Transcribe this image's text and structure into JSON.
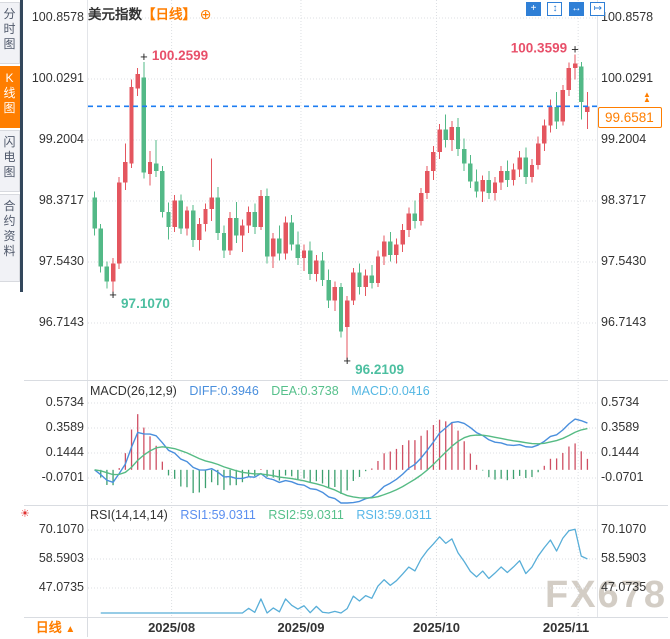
{
  "sidebar": {
    "tabs": [
      {
        "label": "分时图",
        "active": false
      },
      {
        "label": "K线图",
        "active": true
      },
      {
        "label": "闪电图",
        "active": false
      },
      {
        "label": "合约资料",
        "active": false
      }
    ]
  },
  "header": {
    "title": "美元指数",
    "period_tag": "【日线】",
    "add_icon_glyph": "⊕"
  },
  "toolbar": {
    "icons": [
      {
        "name": "pan-tool-icon",
        "glyph": "+",
        "active": true
      },
      {
        "name": "fit-vertical-icon",
        "glyph": "↕",
        "active": false
      },
      {
        "name": "fit-horizontal-icon",
        "glyph": "↔",
        "active": true
      },
      {
        "name": "scroll-to-latest-icon",
        "glyph": "↦",
        "active": false
      }
    ]
  },
  "chart_data": {
    "type": "candlestick",
    "title": "美元指数",
    "period": "日线",
    "y_axis": {
      "labels": [
        "100.8578",
        "100.0291",
        "99.2004",
        "98.3717",
        "97.5430",
        "96.7143"
      ]
    },
    "x_axis": {
      "labels": [
        "2025/08",
        "2025/09",
        "2025/10",
        "2025/11"
      ],
      "month_start_indices": [
        13,
        34,
        56,
        79
      ]
    },
    "fields": [
      "date",
      "open",
      "high",
      "low",
      "close"
    ],
    "candles": [
      [
        "07/15",
        98.42,
        98.5,
        97.9,
        98.0
      ],
      [
        "07/16",
        98.0,
        98.06,
        97.4,
        97.48
      ],
      [
        "07/17",
        97.48,
        97.55,
        97.18,
        97.28
      ],
      [
        "07/18",
        97.28,
        97.6,
        97.107,
        97.52
      ],
      [
        "07/21",
        97.52,
        98.7,
        97.45,
        98.62
      ],
      [
        "07/22",
        98.62,
        99.15,
        98.52,
        98.9
      ],
      [
        "07/23",
        98.88,
        100.02,
        98.82,
        99.92
      ],
      [
        "07/24",
        99.9,
        100.18,
        99.8,
        100.1
      ],
      [
        "07/25",
        100.05,
        100.2599,
        98.68,
        98.76
      ],
      [
        "07/28",
        98.74,
        99.05,
        98.58,
        98.9
      ],
      [
        "07/29",
        98.88,
        99.2,
        98.7,
        98.78
      ],
      [
        "07/30",
        98.78,
        98.85,
        98.15,
        98.22
      ],
      [
        "07/31",
        98.22,
        98.35,
        97.85,
        98.02
      ],
      [
        "08/01",
        98.02,
        98.45,
        97.95,
        98.38
      ],
      [
        "08/04",
        98.38,
        98.46,
        97.92,
        98.0
      ],
      [
        "08/05",
        98.0,
        98.3,
        97.9,
        98.24
      ],
      [
        "08/06",
        98.24,
        98.32,
        97.75,
        97.84
      ],
      [
        "08/07",
        97.84,
        98.14,
        97.7,
        98.06
      ],
      [
        "08/08",
        98.06,
        98.34,
        97.96,
        98.26
      ],
      [
        "08/11",
        98.26,
        98.95,
        98.1,
        98.42
      ],
      [
        "08/12",
        98.42,
        98.56,
        97.84,
        97.94
      ],
      [
        "08/13",
        97.94,
        98.04,
        97.6,
        97.7
      ],
      [
        "08/14",
        97.7,
        98.22,
        97.64,
        98.14
      ],
      [
        "08/15",
        98.14,
        98.36,
        97.8,
        97.9
      ],
      [
        "08/18",
        97.9,
        98.12,
        97.68,
        98.04
      ],
      [
        "08/19",
        98.04,
        98.3,
        97.94,
        98.22
      ],
      [
        "08/20",
        98.22,
        98.34,
        97.92,
        98.02
      ],
      [
        "08/21",
        98.02,
        98.52,
        97.98,
        98.44
      ],
      [
        "08/22",
        98.44,
        98.54,
        97.52,
        97.62
      ],
      [
        "08/25",
        97.62,
        97.94,
        97.46,
        97.86
      ],
      [
        "08/26",
        97.86,
        98.04,
        97.56,
        97.66
      ],
      [
        "08/27",
        97.66,
        98.16,
        97.58,
        98.08
      ],
      [
        "08/28",
        98.08,
        98.18,
        97.7,
        97.78
      ],
      [
        "08/29",
        97.78,
        97.96,
        97.5,
        97.6
      ],
      [
        "09/01",
        97.6,
        97.78,
        97.42,
        97.7
      ],
      [
        "09/02",
        97.7,
        97.82,
        97.3,
        97.38
      ],
      [
        "09/03",
        97.38,
        97.64,
        97.28,
        97.56
      ],
      [
        "09/04",
        97.56,
        97.68,
        97.22,
        97.3
      ],
      [
        "09/05",
        97.3,
        97.44,
        96.92,
        97.02
      ],
      [
        "09/08",
        97.02,
        97.28,
        96.88,
        97.2
      ],
      [
        "09/09",
        97.2,
        97.26,
        96.52,
        96.6
      ],
      [
        "09/10",
        96.66,
        97.08,
        96.2109,
        97.02
      ],
      [
        "09/11",
        97.02,
        97.46,
        96.96,
        97.4
      ],
      [
        "09/12",
        97.4,
        97.52,
        97.1,
        97.2
      ],
      [
        "09/15",
        97.2,
        97.44,
        97.08,
        97.36
      ],
      [
        "09/16",
        97.36,
        97.5,
        97.18,
        97.26
      ],
      [
        "09/17",
        97.26,
        97.7,
        97.2,
        97.62
      ],
      [
        "09/18",
        97.62,
        97.9,
        97.5,
        97.82
      ],
      [
        "09/19",
        97.82,
        97.95,
        97.55,
        97.64
      ],
      [
        "09/22",
        97.64,
        97.86,
        97.52,
        97.78
      ],
      [
        "09/23",
        97.78,
        98.06,
        97.68,
        97.98
      ],
      [
        "09/24",
        97.98,
        98.28,
        97.88,
        98.2
      ],
      [
        "09/25",
        98.2,
        98.38,
        98.0,
        98.1
      ],
      [
        "09/26",
        98.1,
        98.55,
        98.04,
        98.48
      ],
      [
        "09/29",
        98.48,
        98.85,
        98.4,
        98.78
      ],
      [
        "09/30",
        98.78,
        99.12,
        98.66,
        99.04
      ],
      [
        "10/01",
        99.04,
        99.42,
        98.94,
        99.34
      ],
      [
        "10/02",
        99.34,
        99.55,
        99.1,
        99.2
      ],
      [
        "10/03",
        99.2,
        99.46,
        99.05,
        99.38
      ],
      [
        "10/06",
        99.38,
        99.5,
        98.98,
        99.08
      ],
      [
        "10/07",
        99.08,
        99.22,
        98.78,
        98.88
      ],
      [
        "10/08",
        98.88,
        99.0,
        98.55,
        98.64
      ],
      [
        "10/09",
        98.64,
        98.8,
        98.42,
        98.5
      ],
      [
        "10/10",
        98.5,
        98.72,
        98.36,
        98.66
      ],
      [
        "10/13",
        98.66,
        98.78,
        98.4,
        98.48
      ],
      [
        "10/14",
        98.48,
        98.7,
        98.38,
        98.62
      ],
      [
        "10/15",
        98.62,
        98.85,
        98.52,
        98.78
      ],
      [
        "10/16",
        98.78,
        98.92,
        98.56,
        98.66
      ],
      [
        "10/17",
        98.66,
        98.88,
        98.58,
        98.8
      ],
      [
        "10/20",
        98.8,
        99.05,
        98.7,
        98.96
      ],
      [
        "10/21",
        98.96,
        99.1,
        98.6,
        98.7
      ],
      [
        "10/22",
        98.7,
        98.94,
        98.62,
        98.86
      ],
      [
        "10/23",
        98.86,
        99.25,
        98.8,
        99.15
      ],
      [
        "10/24",
        99.15,
        99.48,
        99.05,
        99.4
      ],
      [
        "10/27",
        99.4,
        99.75,
        99.3,
        99.65
      ],
      [
        "10/28",
        99.65,
        99.85,
        99.35,
        99.45
      ],
      [
        "10/29",
        99.45,
        99.95,
        99.4,
        99.88
      ],
      [
        "10/30",
        99.88,
        100.25,
        99.8,
        100.18
      ],
      [
        "10/31",
        100.18,
        100.3599,
        100.02,
        100.24
      ],
      [
        "11/03",
        100.2,
        100.26,
        99.48,
        99.72
      ],
      [
        "11/04",
        99.58,
        99.85,
        99.35,
        99.6581
      ]
    ],
    "annotations": {
      "high_labels": [
        {
          "text": "100.2599",
          "index": 8,
          "side": "right"
        },
        {
          "text": "100.3599",
          "index": 78,
          "side": "left"
        }
      ],
      "low_labels": [
        {
          "text": "97.1070",
          "index": 3
        },
        {
          "text": "96.2109",
          "index": 41
        }
      ],
      "last_price": "99.6581"
    },
    "macd": {
      "title": "MACD(26,12,9)",
      "diff_label": "DIFF:0.3946",
      "dea_label": "DEA:0.3738",
      "macd_label": "MACD:0.0416",
      "params": [
        26,
        12,
        9
      ],
      "y_labels": [
        "0.5734",
        "0.3589",
        "0.1444",
        "-0.0701"
      ]
    },
    "rsi": {
      "title": "RSI(14,14,14)",
      "rsi1_label": "RSI1:59.0311",
      "rsi2_label": "RSI2:59.0311",
      "rsi3_label": "RSI3:59.0311",
      "params": [
        14,
        14,
        14
      ],
      "y_labels": [
        "70.1070",
        "58.5903",
        "47.0735"
      ]
    },
    "colors": {
      "up": "#e4565f",
      "down": "#53b987",
      "price_line": "#1d7df2",
      "accent_orange": "#ff7e00",
      "annotation_up": "#e8506a",
      "annotation_down": "#4cbfa0",
      "diff_line": "#4a8fdd",
      "dea_line": "#56bb84",
      "hist_up": "#cf4f63",
      "hist_down": "#3da06f",
      "rsi_line": "#58aed8",
      "grid": "#dcdfe3"
    }
  },
  "footer": {
    "period_button": "日线",
    "period_arrow": "▲"
  },
  "watermark": "FX678"
}
